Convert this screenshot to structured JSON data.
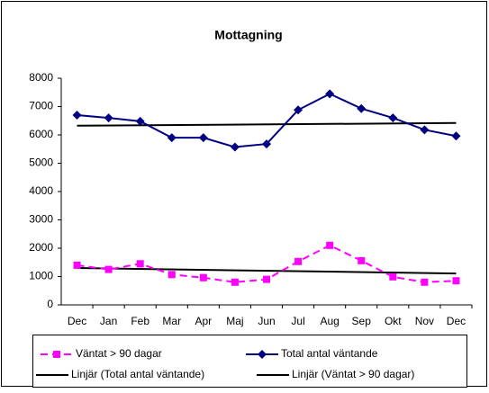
{
  "chart_data": {
    "type": "line",
    "title": "Mottagning",
    "categories": [
      "Dec",
      "Jan",
      "Feb",
      "Mar",
      "Apr",
      "Maj",
      "Jun",
      "Jul",
      "Aug",
      "Sep",
      "Okt",
      "Nov",
      "Dec"
    ],
    "series": [
      {
        "name": "Väntat > 90 dagar",
        "color": "#ff00ff",
        "dashed": true,
        "marker": "square",
        "values": [
          1400,
          1250,
          1450,
          1070,
          960,
          800,
          900,
          1530,
          2100,
          1560,
          990,
          800,
          850
        ],
        "trendline": {
          "name": "Linjär (Väntat > 90 dagar)",
          "color": "#000000"
        }
      },
      {
        "name": "Total antal väntande",
        "color": "#000080",
        "dashed": false,
        "marker": "diamond",
        "values": [
          6700,
          6600,
          6480,
          5900,
          5900,
          5570,
          5680,
          6880,
          7450,
          6930,
          6600,
          6180,
          5960
        ],
        "trendline": {
          "name": "Linjär (Total antal väntande)",
          "color": "#000000"
        }
      }
    ],
    "ylim": [
      0,
      8000
    ],
    "yticks": [
      0,
      1000,
      2000,
      3000,
      4000,
      5000,
      6000,
      7000,
      8000
    ],
    "grid": false,
    "legend": "bottom"
  }
}
